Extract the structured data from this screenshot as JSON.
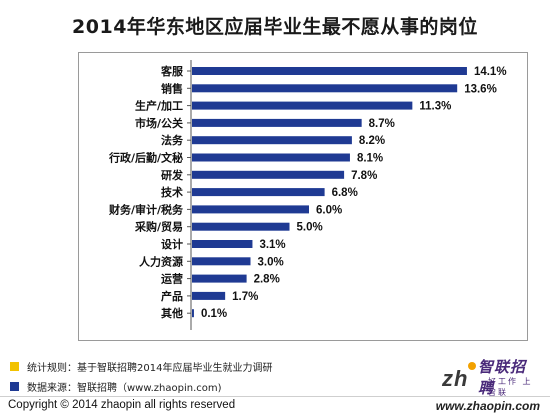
{
  "chart_data": {
    "type": "bar",
    "orientation": "horizontal",
    "title": "2014年华东地区应届毕业生最不愿从事的岗位",
    "categories": [
      "客服",
      "销售",
      "生产/加工",
      "市场/公关",
      "法务",
      "行政/后勤/文秘",
      "研发",
      "技术",
      "财务/审计/税务",
      "采购/贸易",
      "设计",
      "人力资源",
      "运营",
      "产品",
      "其他"
    ],
    "values": [
      14.1,
      13.6,
      11.3,
      8.7,
      8.2,
      8.1,
      7.8,
      6.8,
      6.0,
      5.0,
      3.1,
      3.0,
      2.8,
      1.7,
      0.1
    ],
    "value_labels": [
      "14.1%",
      "13.6%",
      "11.3%",
      "8.7%",
      "8.2%",
      "8.1%",
      "7.8%",
      "6.8%",
      "6.0%",
      "5.0%",
      "3.1%",
      "3.0%",
      "2.8%",
      "1.7%",
      "0.1%"
    ],
    "unit": "%",
    "xlim": [
      0,
      15
    ],
    "grid": false,
    "bar_color": "#1f3a93"
  },
  "notes": {
    "method_label": "统计规则：基于智联招聘2014年应届毕业生就业力调研",
    "method_color": "#f2c200",
    "source_label": "数据来源：智联招聘（www.zhaopin.com)",
    "source_color": "#1f3a93"
  },
  "brand": {
    "name": "智联招聘",
    "sub": "好工作 上智联"
  },
  "footer": {
    "copyright": "Copyright  ©  2014 zhaopin all rights reserved",
    "site": "www.zhaopin.com"
  }
}
